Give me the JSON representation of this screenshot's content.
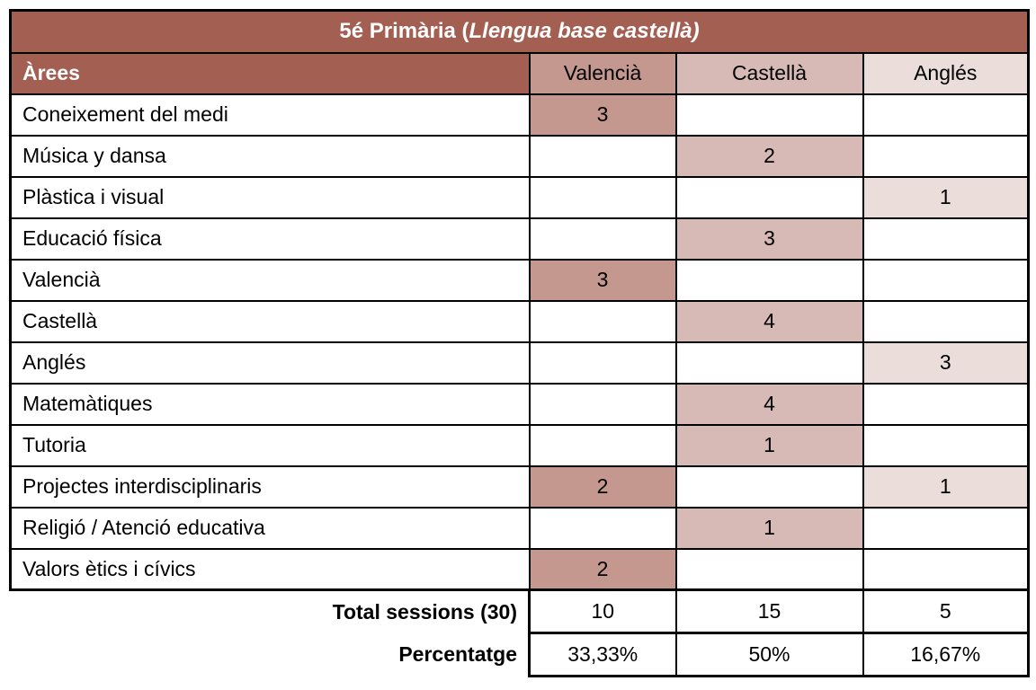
{
  "title": {
    "prefix": "5é Primària (",
    "italic": "Llengua base castellà)"
  },
  "columns": {
    "areas": "Àrees",
    "valencia": "Valencià",
    "castella": "Castellà",
    "angles": "Anglés"
  },
  "rows": [
    {
      "area": "Coneixement del medi",
      "valencia": "3",
      "castella": "",
      "angles": ""
    },
    {
      "area": "Música y dansa",
      "valencia": "",
      "castella": "2",
      "angles": ""
    },
    {
      "area": "Plàstica i visual",
      "valencia": "",
      "castella": "",
      "angles": "1"
    },
    {
      "area": "Educació física",
      "valencia": "",
      "castella": "3",
      "angles": ""
    },
    {
      "area": "Valencià",
      "valencia": "3",
      "castella": "",
      "angles": ""
    },
    {
      "area": "Castellà",
      "valencia": "",
      "castella": "4",
      "angles": ""
    },
    {
      "area": "Anglés",
      "valencia": "",
      "castella": "",
      "angles": "3"
    },
    {
      "area": "Matemàtiques",
      "valencia": "",
      "castella": "4",
      "angles": ""
    },
    {
      "area": "Tutoria",
      "valencia": "",
      "castella": "1",
      "angles": ""
    },
    {
      "area": "Projectes interdisciplinaris",
      "valencia": "2",
      "castella": "",
      "angles": "1"
    },
    {
      "area": "Religió / Atenció educativa",
      "valencia": "",
      "castella": "1",
      "angles": ""
    },
    {
      "area": "Valors ètics i cívics",
      "valencia": "2",
      "castella": "",
      "angles": ""
    }
  ],
  "totals": {
    "label": "Total sessions (30)",
    "valencia": "10",
    "castella": "15",
    "angles": "5"
  },
  "percentages": {
    "label": "Percentatge",
    "valencia": "33,33%",
    "castella": "50%",
    "angles": "16,67%"
  },
  "colors": {
    "header_bg": "#A25F52",
    "valencia_bg": "#C4978F",
    "castella_bg": "#D7BAB5",
    "angles_bg": "#EADDDA",
    "border": "#000000",
    "title_text": "#FFFFFF",
    "body_text": "#000000"
  }
}
